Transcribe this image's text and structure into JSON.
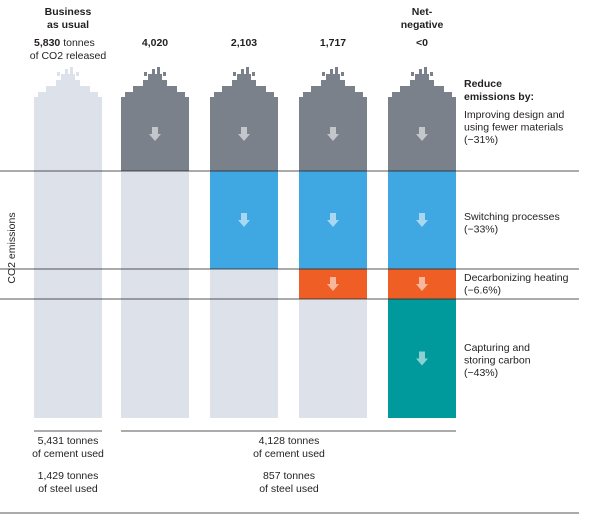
{
  "chart_data": {
    "type": "bar",
    "ylabel": "CO2 emissions",
    "categories": [
      "Business as usual",
      "",
      "",
      "",
      "Net-negative"
    ],
    "totals": [
      "5,830",
      "4,020",
      "2,103",
      "1,717",
      "<0"
    ],
    "column_header_top": {
      "0": [
        "Business",
        "as usual"
      ],
      "4": [
        "Net-",
        "negative"
      ]
    },
    "first_total_note": [
      "tonnes",
      "of CO2 released"
    ],
    "legend_title": [
      "Reduce",
      "emissions by:"
    ],
    "stages": [
      {
        "name": [
          "Improving design and",
          "using fewer materials",
          "(−31%)"
        ],
        "color": "#7b818b",
        "active": [
          false,
          true,
          true,
          true,
          true
        ]
      },
      {
        "name": [
          "Switching processes",
          "(−33%)"
        ],
        "color": "#3fa7e1",
        "active": [
          false,
          false,
          true,
          true,
          true
        ]
      },
      {
        "name": [
          "Decarbonizing heating",
          "(−6.6%)"
        ],
        "color": "#ef5f25",
        "active": [
          false,
          false,
          false,
          true,
          true
        ]
      },
      {
        "name": [
          "Capturing and",
          "storing carbon",
          "(−43%)"
        ],
        "color": "#00999c",
        "active": [
          false,
          false,
          false,
          false,
          true
        ]
      }
    ],
    "inactive_color": "#dde2ea",
    "footnotes": {
      "left": [
        "5,431 tonnes",
        "of cement used",
        "1,429 tonnes",
        "of steel used"
      ],
      "right": [
        "4,128 tonnes",
        "of cement used",
        "857 tonnes",
        "of steel used"
      ]
    }
  }
}
